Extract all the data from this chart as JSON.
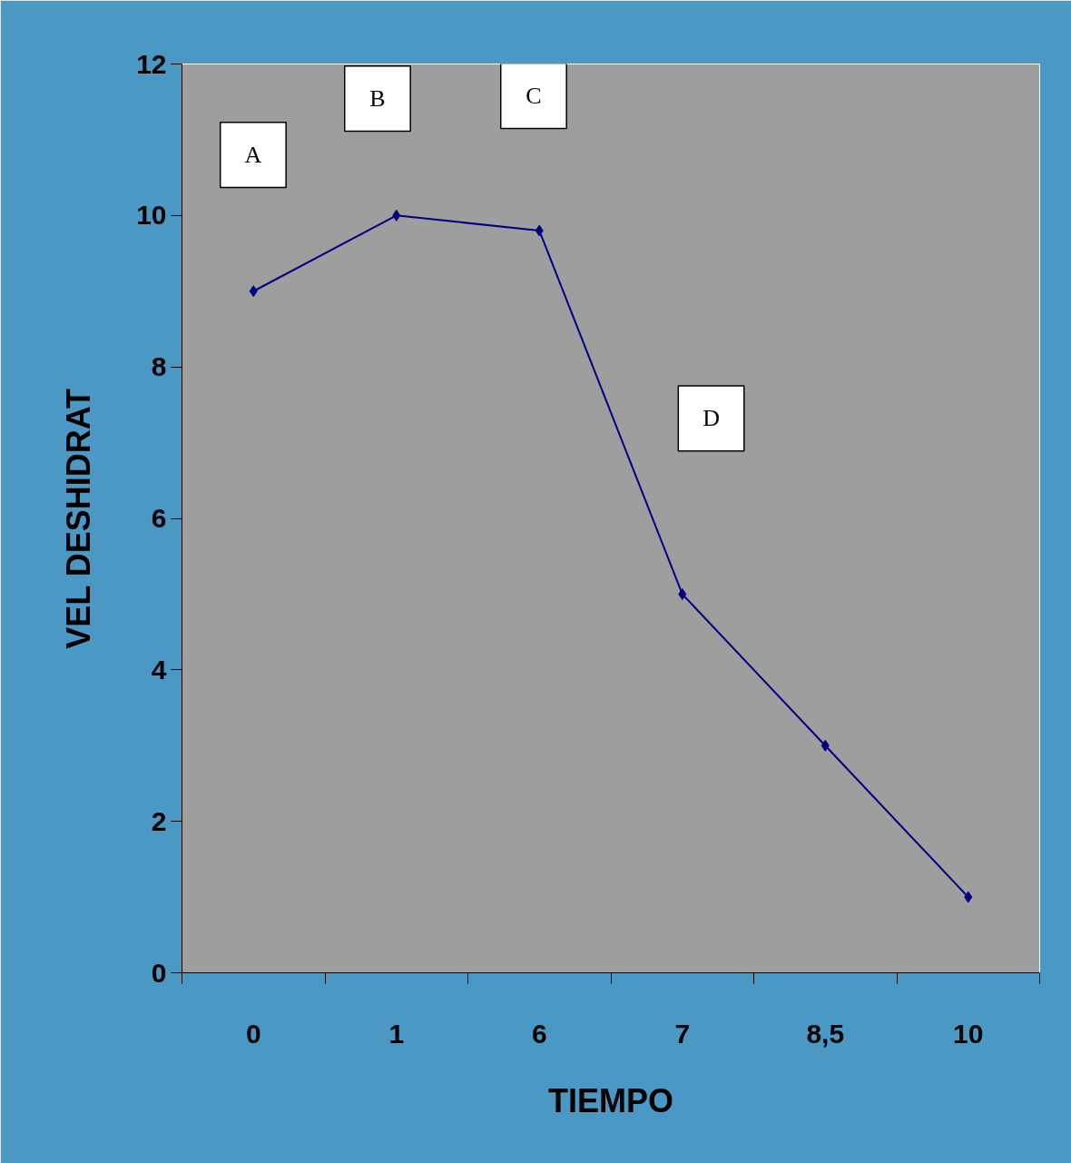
{
  "chart_data": {
    "type": "line",
    "xlabel": "TIEMPO",
    "ylabel": "VEL DESHIDRAT",
    "categories": [
      "0",
      "1",
      "6",
      "7",
      "8,5",
      "10"
    ],
    "series": [
      {
        "color": "#000080",
        "values": [
          9,
          10,
          9.8,
          5,
          3,
          1
        ]
      }
    ],
    "ylim": [
      0,
      12
    ],
    "yticks": [
      0,
      2,
      4,
      6,
      8,
      10,
      12
    ],
    "marker": "diamond",
    "line_style": "solid",
    "annotations": [
      "A",
      "B",
      "C",
      "D"
    ]
  }
}
